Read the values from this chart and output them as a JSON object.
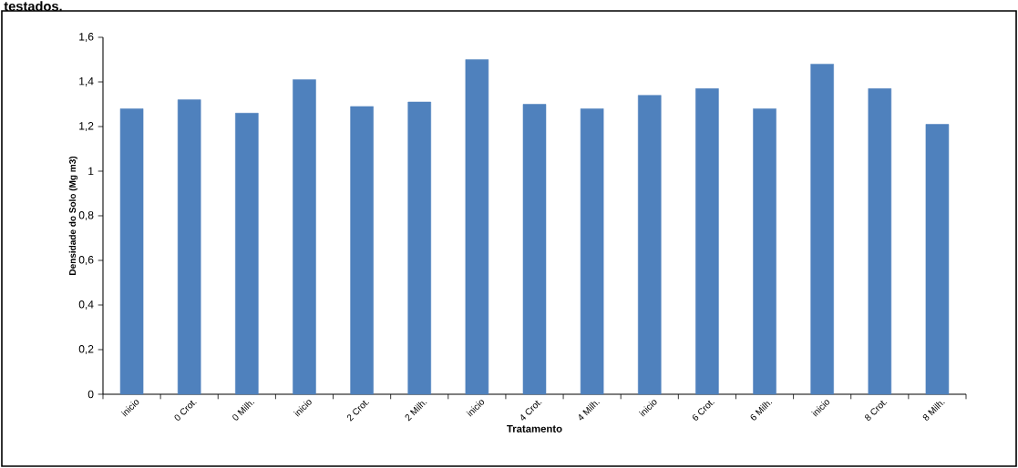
{
  "chart_data": {
    "type": "bar",
    "xlabel": "Tratamento",
    "ylabel": "Densidade do Solo (Mg m3)",
    "annotations": [
      "testados."
    ],
    "categories": [
      "inicio",
      "0 Crot.",
      "0 Milh.",
      "inicio",
      "2 Crot.",
      "2 Milh.",
      "inicio",
      "4 Crot.",
      "4 Milh.",
      "inicio",
      "6 Crot.",
      "6 Milh.",
      "inicio",
      "8 Crot.",
      "8 Milh."
    ],
    "values": [
      1.28,
      1.32,
      1.26,
      1.41,
      1.29,
      1.31,
      1.5,
      1.3,
      1.28,
      1.34,
      1.37,
      1.28,
      1.48,
      1.37,
      1.21
    ],
    "color": "#4f81bd",
    "ylim": [
      0,
      1.6
    ],
    "yticks": [
      {
        "value": 0,
        "label": "0"
      },
      {
        "value": 0.2,
        "label": "0,2"
      },
      {
        "value": 0.4,
        "label": "0,4"
      },
      {
        "value": 0.6,
        "label": "0,6"
      },
      {
        "value": 0.8,
        "label": "0,8"
      },
      {
        "value": 1,
        "label": "1"
      },
      {
        "value": 1.2,
        "label": "1,2"
      },
      {
        "value": 1.4,
        "label": "1,4"
      },
      {
        "value": 1.6,
        "label": "1,6"
      }
    ],
    "grid": false
  }
}
